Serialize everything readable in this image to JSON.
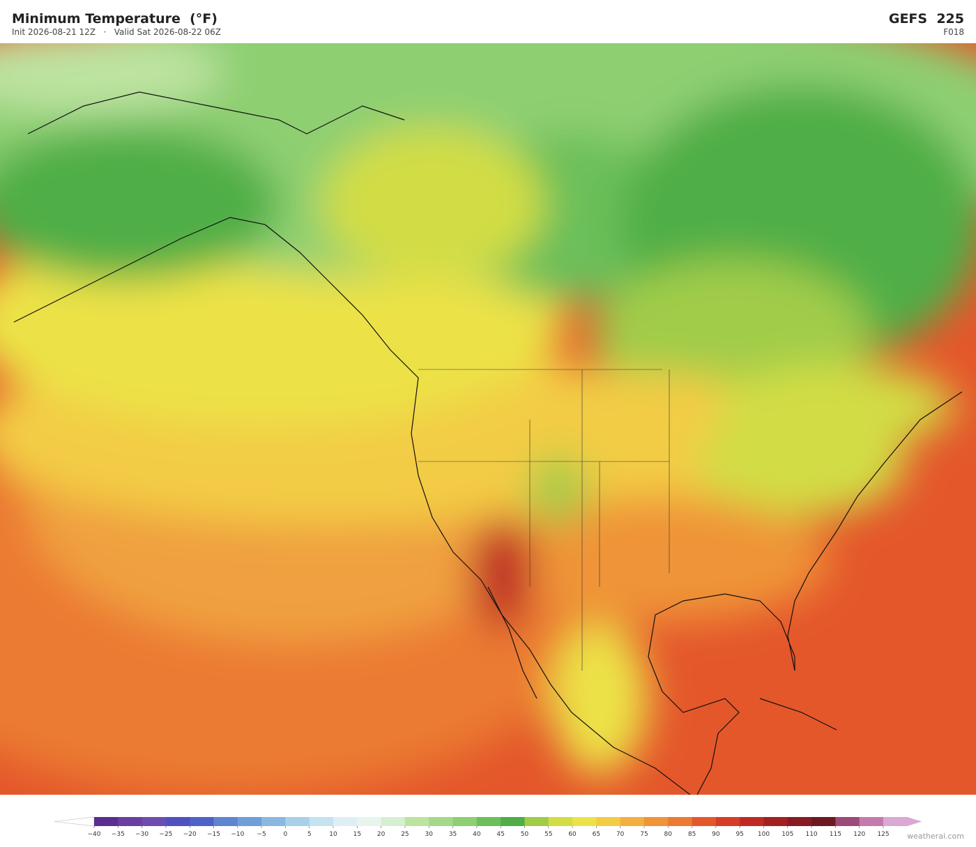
{
  "header": {
    "title": "Minimum Temperature  (°F)",
    "subtitle": "Init 2026-08-21 12Z   ·   Valid Sat 2026-08-22 06Z",
    "model": "GEFS  225",
    "forecast_hour": "F018"
  },
  "colorbar": {
    "ticks": [
      {
        "value": -40,
        "label": "−40"
      },
      {
        "value": -35,
        "label": "−35"
      },
      {
        "value": -30,
        "label": "−30"
      },
      {
        "value": -25,
        "label": "−25"
      },
      {
        "value": -20,
        "label": "−20"
      },
      {
        "value": -15,
        "label": "−15"
      },
      {
        "value": -10,
        "label": "−10"
      },
      {
        "value": -5,
        "label": "−5"
      },
      0,
      5,
      10,
      15,
      20,
      25,
      30,
      35,
      40,
      45,
      50,
      55,
      60,
      65,
      70,
      75,
      80,
      85,
      90,
      95,
      100,
      105,
      110,
      115,
      120,
      125
    ],
    "colors": [
      "#5b2d8e",
      "#6a3fa0",
      "#6d4db0",
      "#5050c0",
      "#4f62c8",
      "#5f85d0",
      "#6f9fd8",
      "#8ab8e0",
      "#a8d0ea",
      "#c4e2f0",
      "#ddeff5",
      "#e8f5ee",
      "#d6efd0",
      "#bde3a0",
      "#a5d98a",
      "#8ecf72",
      "#6cbf5a",
      "#4fae47",
      "#a0cc48",
      "#d2dd45",
      "#ece247",
      "#f3cc45",
      "#f3b040",
      "#ef9438",
      "#eb7a33",
      "#e4572b",
      "#d63d29",
      "#bf2a25",
      "#a21f22",
      "#871a22",
      "#6e1820",
      "#9b4a7a",
      "#c57aae",
      "#dba8d4"
    ]
  },
  "watermark": "weatherai.com"
}
